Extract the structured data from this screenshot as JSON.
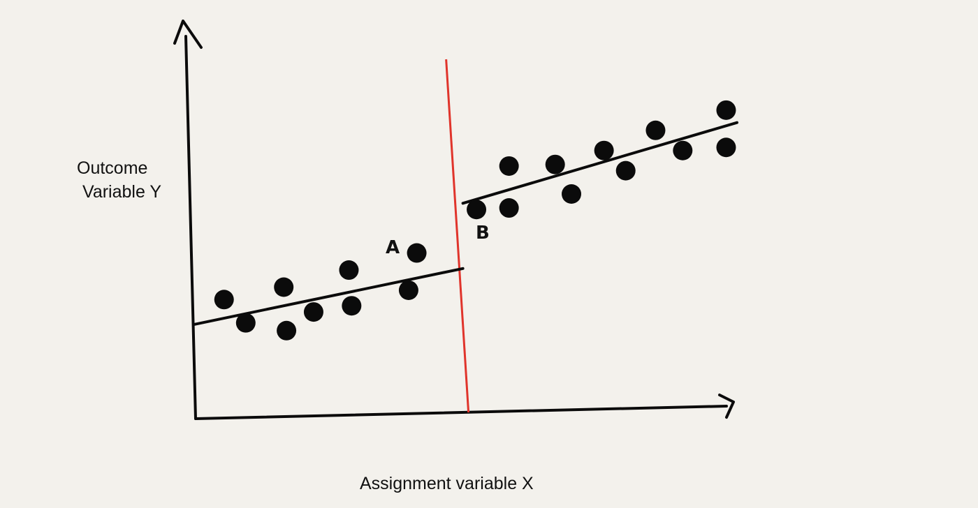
{
  "labels": {
    "ylabel_line1": "Outcome",
    "ylabel_line2": "Variable Y",
    "xlabel": "Assignment variable X",
    "point_a": "A",
    "point_b": "B"
  },
  "colors": {
    "background": "#f3f1ec",
    "ink": "#0b0b0b",
    "cutoff": "#e0342b"
  },
  "chart_data": {
    "type": "scatter",
    "x_range": [
      0,
      100
    ],
    "y_range": [
      0,
      100
    ],
    "cutoff_x": 49.5,
    "groups": [
      {
        "points": [
          [
            5.5,
            26
          ],
          [
            9.5,
            18.5
          ],
          [
            16.5,
            30
          ],
          [
            17,
            16
          ],
          [
            22,
            22
          ],
          [
            28.5,
            35.5
          ],
          [
            29,
            24
          ],
          [
            39.5,
            29
          ],
          [
            41,
            41
          ]
        ],
        "fit_line": {
          "x": [
            0,
            49.5
          ],
          "y": [
            18,
            36
          ]
        }
      },
      {
        "points": [
          [
            52,
            55
          ],
          [
            58,
            55.5
          ],
          [
            58,
            69
          ],
          [
            66.5,
            69.5
          ],
          [
            69.5,
            60
          ],
          [
            75.5,
            74
          ],
          [
            79.5,
            67.5
          ],
          [
            85,
            80.5
          ],
          [
            90,
            74
          ],
          [
            98,
            75
          ],
          [
            98,
            87
          ]
        ],
        "fit_line": {
          "x": [
            49.5,
            100
          ],
          "y": [
            57,
            83
          ]
        }
      }
    ]
  }
}
